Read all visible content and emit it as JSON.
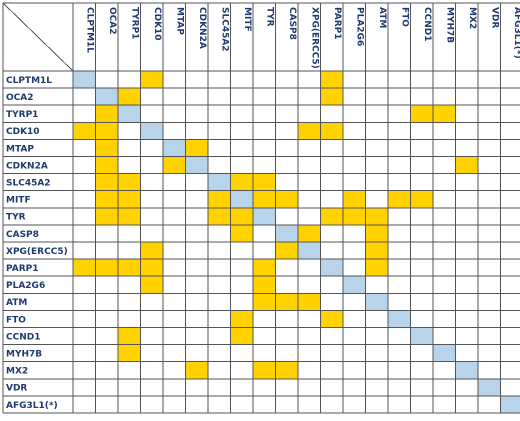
{
  "colors": {
    "highlight": "#ffd200",
    "diagonal": "#b8d4ea",
    "grid": "#555555",
    "text": "#1f3a6e",
    "background": "#ffffff"
  },
  "genes": [
    "CLPTM1L",
    "OCA2",
    "TYRP1",
    "CDK10",
    "MTAP",
    "CDKN2A",
    "SLC45A2",
    "MITF",
    "TYR",
    "CASP8",
    "XPG(ERCC5)",
    "PARP1",
    "PLA2G6",
    "ATM",
    "FTO",
    "CCND1",
    "MYH7B",
    "MX2",
    "VDR",
    "AFG3L1(*)"
  ],
  "matrix": [
    [
      2,
      0,
      0,
      1,
      0,
      0,
      0,
      0,
      0,
      0,
      0,
      1,
      0,
      0,
      0,
      0,
      0,
      0,
      0,
      0
    ],
    [
      0,
      2,
      1,
      0,
      0,
      0,
      0,
      0,
      0,
      0,
      0,
      1,
      0,
      0,
      0,
      0,
      0,
      0,
      0,
      0
    ],
    [
      0,
      1,
      2,
      0,
      0,
      0,
      0,
      0,
      0,
      0,
      0,
      0,
      0,
      0,
      0,
      1,
      1,
      0,
      0,
      0
    ],
    [
      1,
      1,
      0,
      2,
      0,
      0,
      0,
      0,
      0,
      0,
      1,
      1,
      0,
      0,
      0,
      0,
      0,
      0,
      0,
      0
    ],
    [
      0,
      1,
      0,
      0,
      2,
      1,
      0,
      0,
      0,
      0,
      0,
      0,
      0,
      0,
      0,
      0,
      0,
      0,
      0,
      0
    ],
    [
      0,
      1,
      0,
      0,
      1,
      2,
      0,
      0,
      0,
      0,
      0,
      0,
      0,
      0,
      0,
      0,
      0,
      1,
      0,
      0
    ],
    [
      0,
      1,
      1,
      0,
      0,
      0,
      2,
      1,
      1,
      0,
      0,
      0,
      0,
      0,
      0,
      0,
      0,
      0,
      0,
      0
    ],
    [
      0,
      1,
      1,
      0,
      0,
      0,
      1,
      2,
      1,
      1,
      0,
      0,
      1,
      0,
      1,
      1,
      0,
      0,
      0,
      0
    ],
    [
      0,
      1,
      1,
      0,
      0,
      0,
      1,
      1,
      2,
      0,
      0,
      1,
      1,
      1,
      0,
      0,
      0,
      0,
      0,
      0
    ],
    [
      0,
      0,
      0,
      0,
      0,
      0,
      0,
      1,
      0,
      2,
      1,
      0,
      0,
      1,
      0,
      0,
      0,
      0,
      0,
      0
    ],
    [
      0,
      0,
      0,
      1,
      0,
      0,
      0,
      0,
      0,
      1,
      2,
      0,
      0,
      1,
      0,
      0,
      0,
      0,
      0,
      0
    ],
    [
      1,
      1,
      1,
      1,
      0,
      0,
      0,
      0,
      1,
      0,
      0,
      2,
      0,
      1,
      0,
      0,
      0,
      0,
      0,
      0
    ],
    [
      0,
      0,
      0,
      1,
      0,
      0,
      0,
      0,
      1,
      0,
      0,
      0,
      2,
      0,
      0,
      0,
      0,
      0,
      0,
      0
    ],
    [
      0,
      0,
      0,
      0,
      0,
      0,
      0,
      0,
      1,
      1,
      1,
      0,
      0,
      2,
      0,
      0,
      0,
      0,
      0,
      0
    ],
    [
      0,
      0,
      0,
      0,
      0,
      0,
      0,
      1,
      0,
      0,
      0,
      1,
      0,
      0,
      2,
      0,
      0,
      0,
      0,
      0
    ],
    [
      0,
      0,
      1,
      0,
      0,
      0,
      0,
      1,
      0,
      0,
      0,
      0,
      0,
      0,
      0,
      2,
      0,
      0,
      0,
      0
    ],
    [
      0,
      0,
      1,
      0,
      0,
      0,
      0,
      0,
      0,
      0,
      0,
      0,
      0,
      0,
      0,
      0,
      2,
      0,
      0,
      0
    ],
    [
      0,
      0,
      0,
      0,
      0,
      1,
      0,
      0,
      1,
      1,
      0,
      0,
      0,
      0,
      0,
      0,
      0,
      2,
      0,
      0
    ],
    [
      0,
      0,
      0,
      0,
      0,
      0,
      0,
      0,
      0,
      0,
      0,
      0,
      0,
      0,
      0,
      0,
      0,
      0,
      2,
      0
    ],
    [
      0,
      0,
      0,
      0,
      0,
      0,
      0,
      0,
      0,
      0,
      0,
      0,
      0,
      0,
      0,
      0,
      0,
      0,
      0,
      2
    ]
  ]
}
